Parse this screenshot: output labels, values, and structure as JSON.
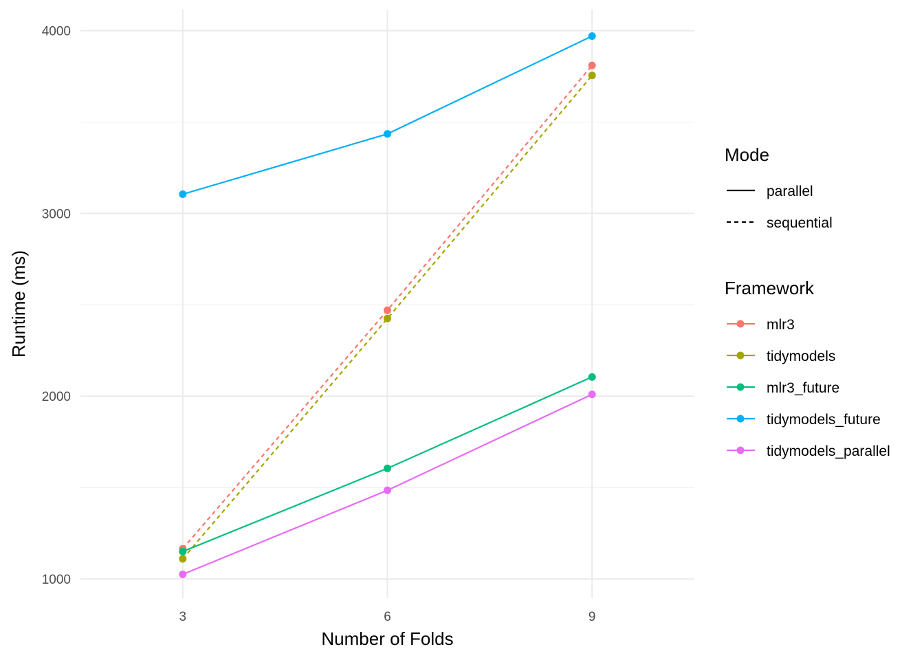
{
  "chart_data": {
    "type": "line",
    "title": "",
    "xlabel": "Number of Folds",
    "ylabel": "Runtime (ms)",
    "x": [
      3,
      6,
      9
    ],
    "x_ticks": [
      "3",
      "6",
      "9"
    ],
    "y_ticks": [
      "1000",
      "2000",
      "3000",
      "4000"
    ],
    "xlim": [
      1.5,
      10.5
    ],
    "ylim": [
      895,
      4115
    ],
    "grid": true,
    "legend_placement": "right",
    "mode_legend": {
      "title": "Mode",
      "items": [
        {
          "label": "parallel",
          "dash": "solid"
        },
        {
          "label": "sequential",
          "dash": "dashed"
        }
      ]
    },
    "framework_legend": {
      "title": "Framework",
      "items": [
        {
          "label": "mlr3",
          "color": "#F8766D"
        },
        {
          "label": "tidymodels",
          "color": "#A3A500"
        },
        {
          "label": "mlr3_future",
          "color": "#00BF7D"
        },
        {
          "label": "tidymodels_future",
          "color": "#00B0F6"
        },
        {
          "label": "tidymodels_parallel",
          "color": "#E76BF3"
        }
      ]
    },
    "series": [
      {
        "name": "mlr3",
        "color": "#F8766D",
        "mode": "sequential",
        "values": [
          1165,
          2470,
          3810
        ]
      },
      {
        "name": "tidymodels",
        "color": "#A3A500",
        "mode": "sequential",
        "values": [
          1110,
          2425,
          3755
        ]
      },
      {
        "name": "mlr3_future",
        "color": "#00BF7D",
        "mode": "parallel",
        "values": [
          1150,
          1605,
          2105
        ]
      },
      {
        "name": "tidymodels_future",
        "color": "#00B0F6",
        "mode": "parallel",
        "values": [
          3105,
          3435,
          3970
        ]
      },
      {
        "name": "tidymodels_parallel",
        "color": "#E76BF3",
        "mode": "parallel",
        "values": [
          1025,
          1485,
          2010
        ]
      }
    ]
  }
}
